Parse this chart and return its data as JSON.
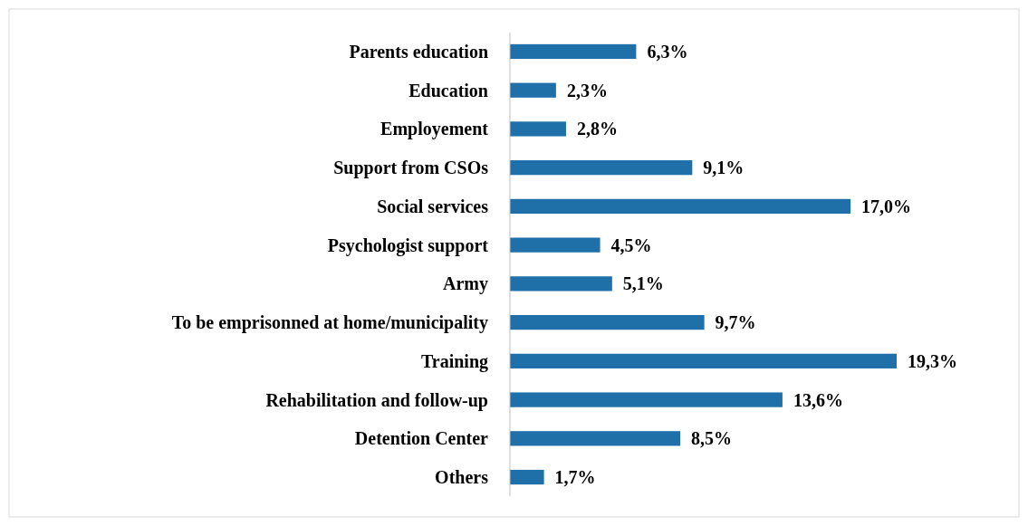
{
  "chart_data": {
    "type": "bar",
    "orientation": "horizontal",
    "categories": [
      "Parents education",
      "Education",
      "Employement",
      "Support from CSOs",
      "Social services",
      "Psychologist support",
      "Army",
      "To be emprisonned at home/municipality",
      "Training",
      "Rehabilitation and follow-up",
      "Detention Center",
      "Others"
    ],
    "values": [
      6.3,
      2.3,
      2.8,
      9.1,
      17.0,
      4.5,
      5.1,
      9.7,
      19.3,
      13.6,
      8.5,
      1.7
    ],
    "value_labels": [
      "6,3%",
      "2,3%",
      "2,8%",
      "9,1%",
      "17,0%",
      "4,5%",
      "5,1%",
      "9,7%",
      "19,3%",
      "13,6%",
      "8,5%",
      "1,7%"
    ],
    "color": "#1f70a8"
  }
}
